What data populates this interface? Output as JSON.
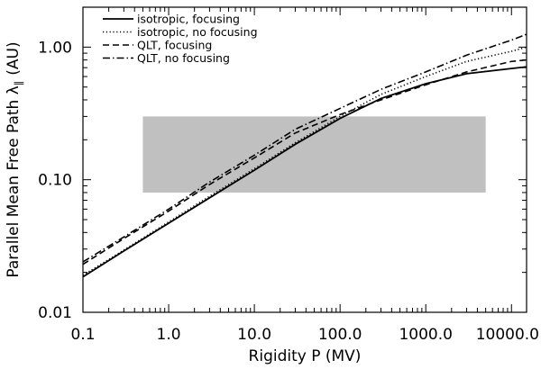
{
  "chart_data": {
    "type": "line",
    "title": "",
    "xlabel": "Rigidity P (MV)",
    "ylabel": "Parallel Mean Free Path λ",
    "ylabel_subscript": "∥",
    "ylabel_unit": "(AU)",
    "x_scale": "log",
    "y_scale": "log",
    "xlim": [
      0.1,
      15000
    ],
    "ylim": [
      0.01,
      2.0
    ],
    "x_ticks": [
      {
        "value": 0.1,
        "label": "0.1"
      },
      {
        "value": 1,
        "label": "1.0"
      },
      {
        "value": 10,
        "label": "10.0"
      },
      {
        "value": 100,
        "label": "100.0"
      },
      {
        "value": 1000,
        "label": "1000.0"
      },
      {
        "value": 10000,
        "label": "10000.0"
      }
    ],
    "y_ticks": [
      {
        "value": 0.01,
        "label": "0.01"
      },
      {
        "value": 0.1,
        "label": "0.10"
      },
      {
        "value": 1,
        "label": "1.00"
      }
    ],
    "grid": false,
    "legend_position": "top-left",
    "shaded_region": {
      "x": [
        0.5,
        5000
      ],
      "y": [
        0.08,
        0.3
      ],
      "color": "#c0c0c0"
    },
    "x": [
      0.1,
      0.3,
      1,
      3,
      10,
      30,
      100,
      300,
      1000,
      3000,
      10000,
      15000
    ],
    "series": [
      {
        "name": "isotropic, focusing",
        "dash": "solid",
        "values": [
          0.0185,
          0.029,
          0.047,
          0.073,
          0.118,
          0.185,
          0.29,
          0.41,
          0.53,
          0.63,
          0.69,
          0.71
        ]
      },
      {
        "name": "isotropic, no focusing",
        "dash": "dot",
        "values": [
          0.019,
          0.0295,
          0.048,
          0.075,
          0.121,
          0.19,
          0.3,
          0.44,
          0.6,
          0.78,
          0.93,
          1.0
        ]
      },
      {
        "name": "QLT, focusing",
        "dash": "dash",
        "values": [
          0.023,
          0.036,
          0.058,
          0.092,
          0.146,
          0.225,
          0.31,
          0.4,
          0.52,
          0.65,
          0.78,
          0.8
        ]
      },
      {
        "name": "QLT, no focusing",
        "dash": "dashdot",
        "values": [
          0.024,
          0.037,
          0.06,
          0.096,
          0.153,
          0.24,
          0.345,
          0.48,
          0.65,
          0.87,
          1.13,
          1.25
        ]
      }
    ]
  }
}
